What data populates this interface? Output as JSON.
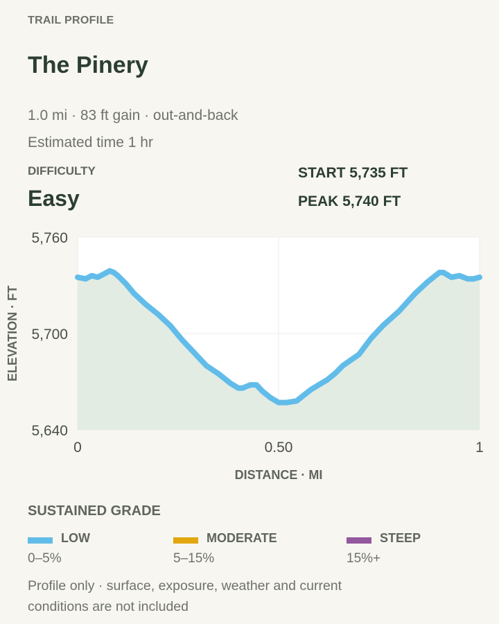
{
  "header": {
    "eyebrow": "TRAIL PROFILE",
    "trail_name": "The Pinery",
    "summary": "1.0 mi · 83 ft gain · out-and-back",
    "estimated_time": "Estimated time 1 hr"
  },
  "difficulty": {
    "label": "DIFFICULTY",
    "value": "Easy"
  },
  "stats": {
    "start": "START 5,735 FT",
    "peak": "PEAK 5,740 FT"
  },
  "chart_data": {
    "type": "area",
    "xlabel": "DISTANCE · MI",
    "ylabel": "ELEVATION · FT",
    "xlim": [
      0,
      1
    ],
    "ylim": [
      5640,
      5760
    ],
    "x_ticks": [
      0,
      0.5,
      1
    ],
    "x_tick_labels": [
      "0",
      "0.50",
      "1"
    ],
    "y_ticks": [
      5640,
      5700,
      5760
    ],
    "y_tick_labels": [
      "5,640",
      "5,700",
      "5,760"
    ],
    "grid": true,
    "line_color": "#62bce9",
    "fill_color": "#e3ece3",
    "series": [
      {
        "x": [
          0,
          0.02,
          0.035,
          0.05,
          0.065,
          0.08,
          0.09,
          0.1,
          0.12,
          0.14,
          0.17,
          0.2,
          0.23,
          0.26,
          0.29,
          0.32,
          0.35,
          0.38,
          0.4,
          0.41,
          0.43,
          0.445,
          0.46,
          0.48,
          0.5,
          0.52,
          0.545,
          0.56,
          0.58,
          0.6,
          0.62,
          0.64,
          0.66,
          0.7,
          0.73,
          0.76,
          0.8,
          0.84,
          0.87,
          0.9,
          0.91,
          0.93,
          0.95,
          0.97,
          0.985,
          1
        ],
        "y": [
          5735,
          5734,
          5736,
          5735,
          5737,
          5739,
          5738,
          5736,
          5731,
          5725,
          5718,
          5712,
          5705,
          5696,
          5688,
          5680,
          5675,
          5669,
          5666,
          5666,
          5668,
          5668,
          5664,
          5660,
          5657,
          5657,
          5658,
          5661,
          5665,
          5668,
          5671,
          5675,
          5680,
          5687,
          5697,
          5705,
          5714,
          5725,
          5732,
          5738,
          5738,
          5735,
          5736,
          5734,
          5734,
          5735
        ]
      }
    ]
  },
  "grade": {
    "title": "SUSTAINED GRADE",
    "items": [
      {
        "label": "LOW",
        "range": "0–5%",
        "color": "#62bce9"
      },
      {
        "label": "MODERATE",
        "range": "5–15%",
        "color": "#e2a60e"
      },
      {
        "label": "STEEP",
        "range": "15%+",
        "color": "#93589e"
      }
    ]
  },
  "footnote": "Profile only · surface, exposure, weather and current conditions are not included"
}
